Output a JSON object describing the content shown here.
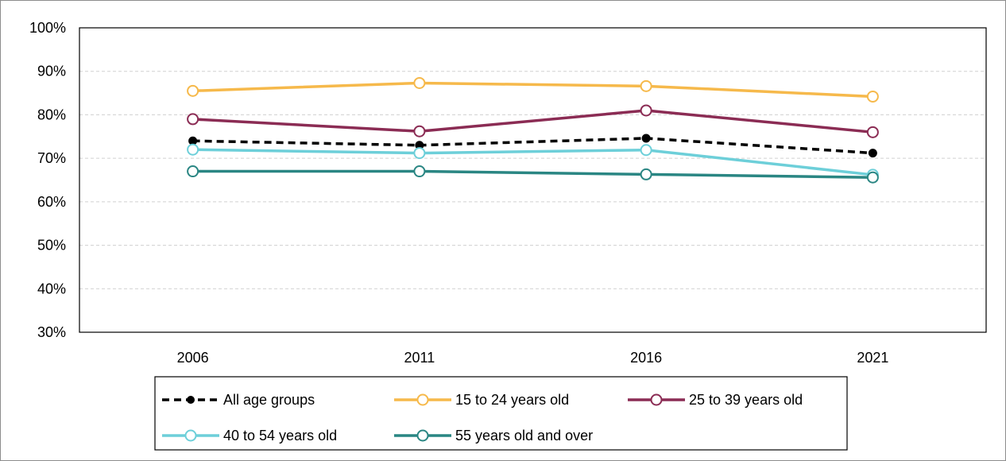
{
  "chart_data": {
    "type": "line",
    "title": "",
    "xlabel": "",
    "ylabel": "",
    "categories": [
      "2006",
      "2011",
      "2016",
      "2021"
    ],
    "ylim": [
      30,
      100
    ],
    "y_ticks": [
      30,
      40,
      50,
      60,
      70,
      80,
      90,
      100
    ],
    "y_tick_labels": [
      "30%",
      "40%",
      "50%",
      "60%",
      "70%",
      "80%",
      "90%",
      "100%"
    ],
    "grid": true,
    "legend_position": "bottom",
    "series": [
      {
        "name": "All age groups",
        "values": [
          74.0,
          73.0,
          74.6,
          71.2
        ],
        "color": "#000000",
        "dash": true,
        "marker": "filled"
      },
      {
        "name": "15 to 24 years old",
        "values": [
          85.5,
          87.3,
          86.6,
          84.2
        ],
        "color": "#F6B94B",
        "dash": false,
        "marker": "hollow"
      },
      {
        "name": "25 to 39 years old",
        "values": [
          79.0,
          76.2,
          81.0,
          76.0
        ],
        "color": "#8B2C54",
        "dash": false,
        "marker": "hollow"
      },
      {
        "name": "40 to 54 years old",
        "values": [
          72.0,
          71.2,
          71.9,
          66.2
        ],
        "color": "#6DCFD9",
        "dash": false,
        "marker": "hollow"
      },
      {
        "name": "55 years old and over",
        "values": [
          67.0,
          67.0,
          66.3,
          65.6
        ],
        "color": "#2A8683",
        "dash": false,
        "marker": "hollow"
      }
    ]
  }
}
